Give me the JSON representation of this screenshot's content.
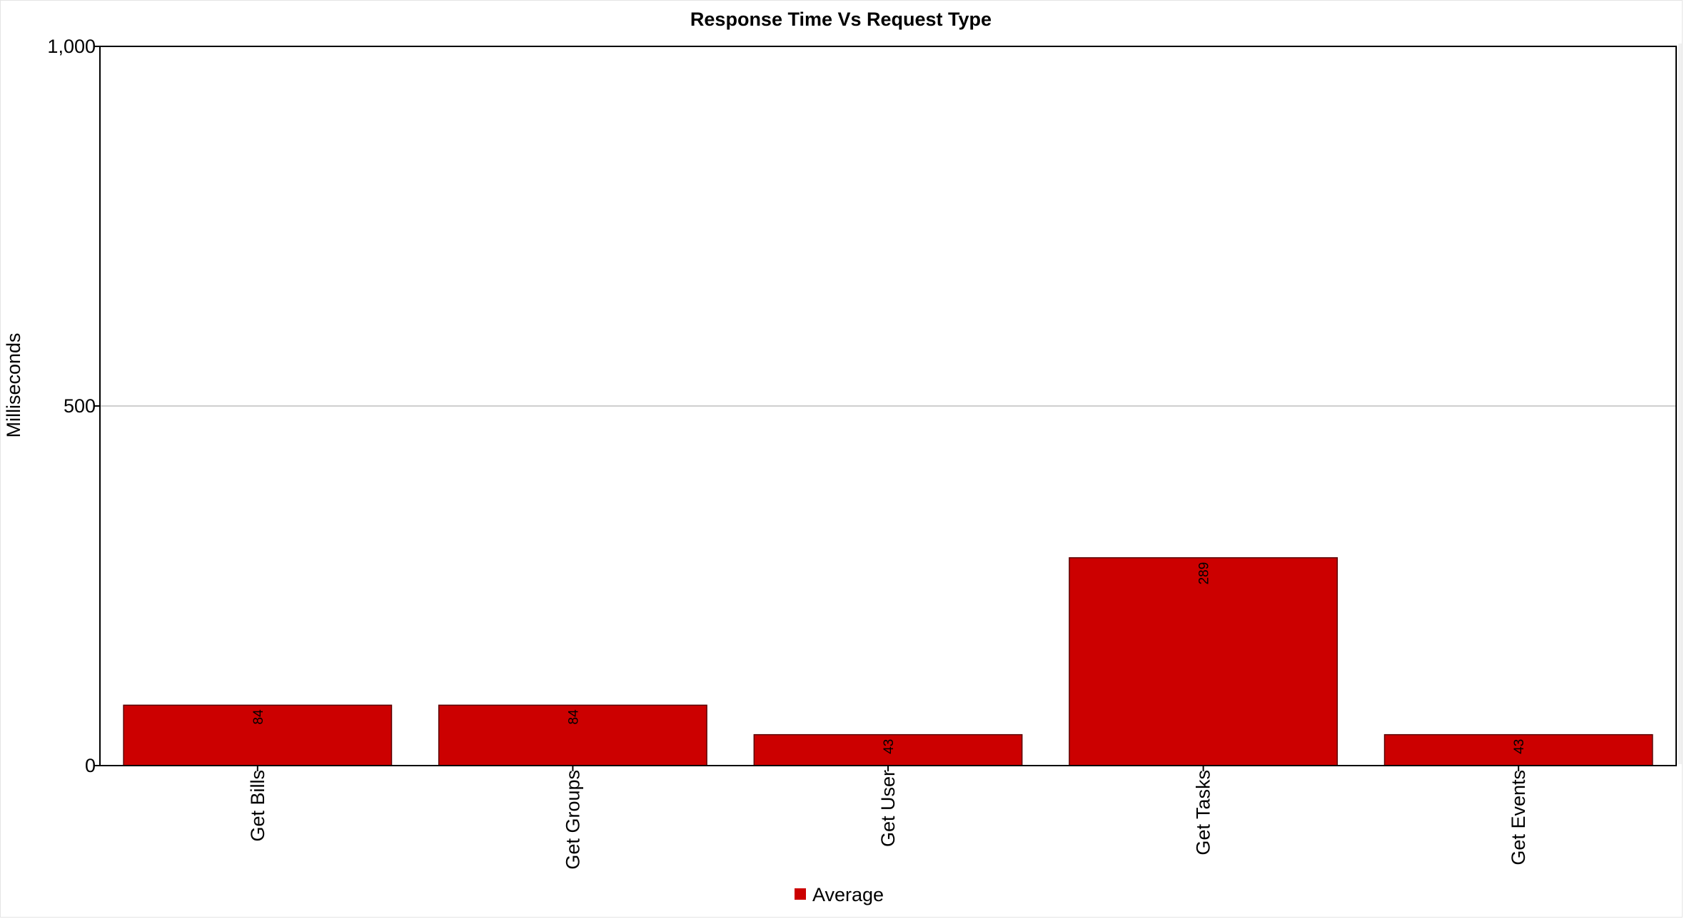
{
  "chart_data": {
    "type": "bar",
    "title": "Response Time Vs Request Type",
    "xlabel": "",
    "ylabel": "Milliseconds",
    "categories": [
      "Get Bills",
      "Get Groups",
      "Get User",
      "Get Tasks",
      "Get Events"
    ],
    "series": [
      {
        "name": "Average",
        "values": [
          84,
          84,
          43,
          289,
          43
        ],
        "labels": [
          "84",
          "84",
          "43",
          "289",
          "43"
        ]
      }
    ],
    "ylim": [
      0,
      1000
    ],
    "yticks": [
      0,
      500,
      1000
    ],
    "ytick_labels": [
      "0",
      "500",
      "1,000"
    ],
    "grid": true,
    "legend": "bottom-center",
    "colors": {
      "bar": "#cc0000",
      "bar_border": "#5a0000",
      "grid": "#cfcfcf",
      "axis": "#000000"
    }
  }
}
